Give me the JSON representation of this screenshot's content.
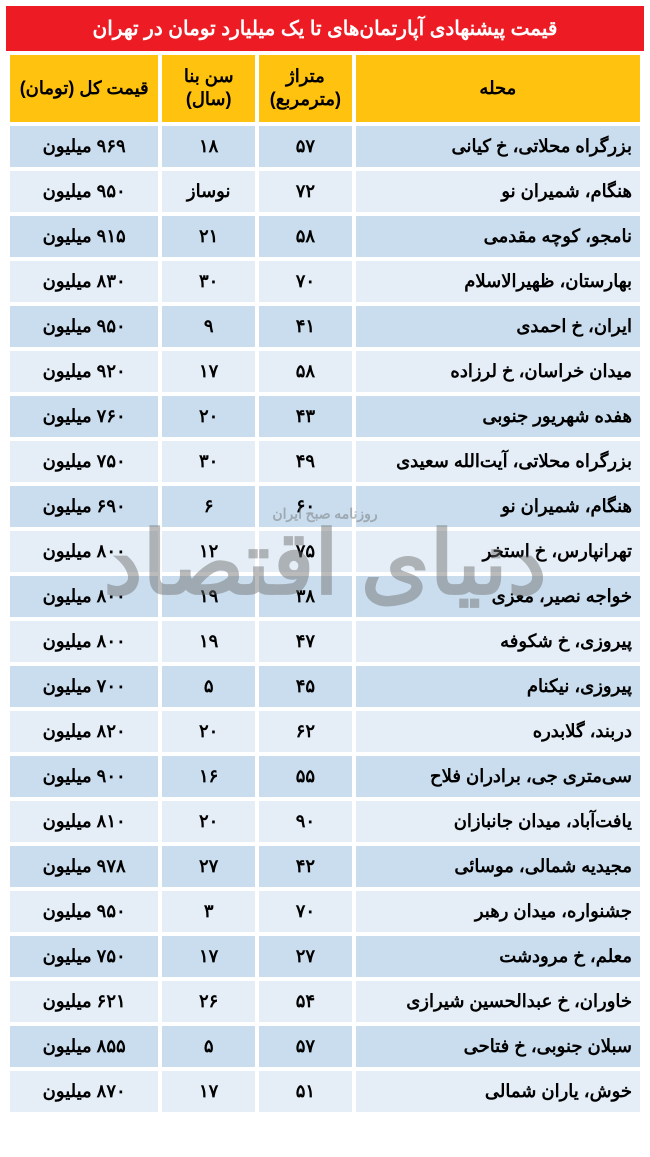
{
  "title": "قیمت پیشنهادی آپارتمان‌های تا یک میلیارد تومان در تهران",
  "columns": {
    "location": "محله",
    "area": "متراژ (مترمربع)",
    "age": "سن بنا (سال)",
    "price": "قیمت کل (تومان)"
  },
  "watermark_main": "دنیای اقتصاد",
  "watermark_sub": "روزنامه صبح ایران",
  "rows": [
    {
      "location": "بزرگراه محلاتی، خ کیانی",
      "area": "۵۷",
      "age": "۱۸",
      "price": "۹۶۹ میلیون"
    },
    {
      "location": "هنگام، شمیران نو",
      "area": "۷۲",
      "age": "نوساز",
      "price": "۹۵۰ میلیون"
    },
    {
      "location": "نامجو، کوچه مقدمی",
      "area": "۵۸",
      "age": "۲۱",
      "price": "۹۱۵ میلیون"
    },
    {
      "location": "بهارستان، ظهیرالاسلام",
      "area": "۷۰",
      "age": "۳۰",
      "price": "۸۳۰ میلیون"
    },
    {
      "location": "ایران، خ احمدی",
      "area": "۴۱",
      "age": "۹",
      "price": "۹۵۰ میلیون"
    },
    {
      "location": "میدان خراسان، خ لرزاده",
      "area": "۵۸",
      "age": "۱۷",
      "price": "۹۲۰ میلیون"
    },
    {
      "location": "هفده شهریور جنوبی",
      "area": "۴۳",
      "age": "۲۰",
      "price": "۷۶۰ میلیون"
    },
    {
      "location": "بزرگراه محلاتی، آیت‌الله سعیدی",
      "area": "۴۹",
      "age": "۳۰",
      "price": "۷۵۰ میلیون"
    },
    {
      "location": "هنگام، شمیران نو",
      "area": "۶۰",
      "age": "۶",
      "price": "۶۹۰ میلیون"
    },
    {
      "location": "تهرانپارس، خ استخر",
      "area": "۷۵",
      "age": "۱۲",
      "price": "۸۰۰ میلیون"
    },
    {
      "location": "خواجه نصیر، معزی",
      "area": "۳۸",
      "age": "۱۹",
      "price": "۸۰۰ میلیون"
    },
    {
      "location": "پیروزی، خ شکوفه",
      "area": "۴۷",
      "age": "۱۹",
      "price": "۸۰۰ میلیون"
    },
    {
      "location": "پیروزی، نیکنام",
      "area": "۴۵",
      "age": "۵",
      "price": "۷۰۰ میلیون"
    },
    {
      "location": "دربند، گلابدره",
      "area": "۶۲",
      "age": "۲۰",
      "price": "۸۲۰ میلیون"
    },
    {
      "location": "سی‌متری جی، برادران فلاح",
      "area": "۵۵",
      "age": "۱۶",
      "price": "۹۰۰ میلیون"
    },
    {
      "location": "یافت‌آباد، میدان جانبازان",
      "area": "۹۰",
      "age": "۲۰",
      "price": "۸۱۰ میلیون"
    },
    {
      "location": "مجیدیه شمالی، موسائی",
      "area": "۴۲",
      "age": "۲۷",
      "price": "۹۷۸ میلیون"
    },
    {
      "location": "جشنواره، میدان رهبر",
      "area": "۷۰",
      "age": "۳",
      "price": "۹۵۰ میلیون"
    },
    {
      "location": "معلم، خ مرودشت",
      "area": "۲۷",
      "age": "۱۷",
      "price": "۷۵۰ میلیون"
    },
    {
      "location": "خاوران، خ عبدالحسین شیرازی",
      "area": "۵۴",
      "age": "۲۶",
      "price": "۶۲۱ میلیون"
    },
    {
      "location": "سبلان جنوبی، خ فتاحی",
      "area": "۵۷",
      "age": "۵",
      "price": "۸۵۵ میلیون"
    },
    {
      "location": "خوش، یاران شمالی",
      "area": "۵۱",
      "age": "۱۷",
      "price": "۸۷۰ میلیون"
    }
  ],
  "style": {
    "title_bg": "#ed1c24",
    "title_color": "#ffffff",
    "header_bg": "#ffc20e",
    "row_even_bg": "#c9ddee",
    "row_odd_bg": "#e5eef7",
    "font_size_title": 20,
    "font_size_header": 18,
    "font_size_cell": 18
  }
}
